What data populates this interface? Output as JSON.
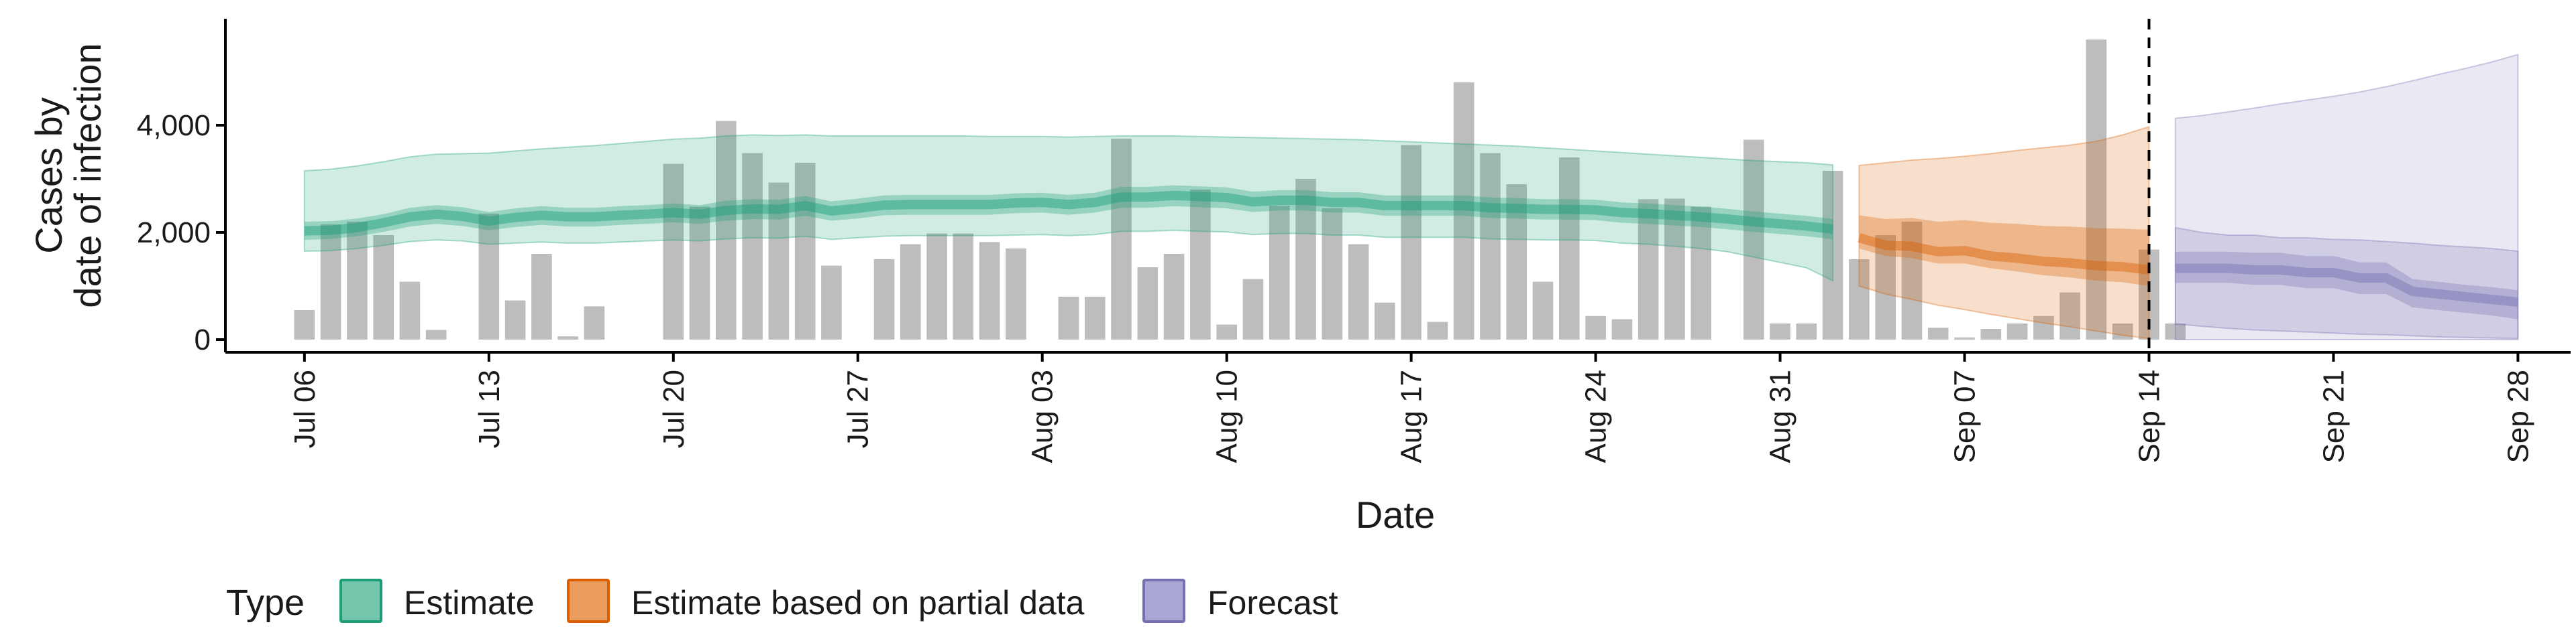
{
  "chart_data": {
    "type": "bar",
    "xlabel": "Date",
    "ylabel": [
      "Cases by",
      "date of infection"
    ],
    "ylim": [
      0,
      6000
    ],
    "y_ticks": [
      0,
      2000,
      4000
    ],
    "y_tick_labels": [
      "0",
      "2,000",
      "4,000"
    ],
    "x_range": [
      "2020-07-03",
      "2020-09-30"
    ],
    "x_ticks": [
      "2020-07-06",
      "2020-07-13",
      "2020-07-20",
      "2020-07-27",
      "2020-08-03",
      "2020-08-10",
      "2020-08-17",
      "2020-08-24",
      "2020-08-31",
      "2020-09-07",
      "2020-09-14",
      "2020-09-21",
      "2020-09-28"
    ],
    "x_tick_labels": [
      "Jul 06",
      "Jul 13",
      "Jul 20",
      "Jul 27",
      "Aug 03",
      "Aug 10",
      "Aug 17",
      "Aug 24",
      "Aug 31",
      "Sep 07",
      "Sep 14",
      "Sep 21",
      "Sep 28"
    ],
    "grid": false,
    "forecast_date": "2020-09-14",
    "colors": {
      "bars": "#bdbdbd",
      "estimate": "#1b9e77",
      "partial": "#d95f02",
      "forecast": "#7570b3",
      "axis": "#000000"
    },
    "bars": {
      "start": "2020-07-06",
      "values": [
        550,
        2150,
        2200,
        1950,
        1080,
        180,
        0,
        2350,
        730,
        1600,
        60,
        620,
        0,
        0,
        3280,
        2480,
        4080,
        3480,
        2930,
        3300,
        1380,
        0,
        1500,
        1780,
        1980,
        1980,
        1820,
        1700,
        0,
        800,
        800,
        3750,
        1350,
        1600,
        2800,
        280,
        1130,
        2500,
        3000,
        2450,
        1780,
        690,
        3630,
        330,
        4800,
        3480,
        2900,
        1080,
        3400,
        440,
        380,
        2620,
        2630,
        2480,
        0,
        3730,
        300,
        300,
        3150,
        1500,
        1950,
        2200,
        220,
        40,
        200,
        300,
        440,
        880,
        5600,
        300,
        1680,
        300
      ]
    },
    "series": [
      {
        "name": "Estimate",
        "start": "2020-07-06",
        "median": [
          2030,
          2040,
          2090,
          2180,
          2290,
          2340,
          2300,
          2210,
          2280,
          2320,
          2290,
          2290,
          2320,
          2340,
          2370,
          2340,
          2410,
          2440,
          2430,
          2500,
          2400,
          2450,
          2510,
          2520,
          2520,
          2520,
          2520,
          2550,
          2560,
          2520,
          2560,
          2660,
          2660,
          2690,
          2670,
          2650,
          2570,
          2600,
          2600,
          2560,
          2560,
          2500,
          2500,
          2500,
          2500,
          2460,
          2450,
          2430,
          2430,
          2420,
          2370,
          2350,
          2320,
          2290,
          2250,
          2200,
          2160,
          2120,
          2060
        ],
        "band50": [
          [
            1860,
            2200
          ],
          [
            1880,
            2210
          ],
          [
            1930,
            2260
          ],
          [
            2010,
            2340
          ],
          [
            2110,
            2460
          ],
          [
            2160,
            2510
          ],
          [
            2120,
            2470
          ],
          [
            2040,
            2380
          ],
          [
            2100,
            2450
          ],
          [
            2140,
            2490
          ],
          [
            2110,
            2460
          ],
          [
            2110,
            2460
          ],
          [
            2140,
            2490
          ],
          [
            2160,
            2510
          ],
          [
            2190,
            2540
          ],
          [
            2160,
            2510
          ],
          [
            2220,
            2590
          ],
          [
            2250,
            2620
          ],
          [
            2240,
            2610
          ],
          [
            2310,
            2680
          ],
          [
            2220,
            2580
          ],
          [
            2260,
            2630
          ],
          [
            2320,
            2690
          ],
          [
            2330,
            2700
          ],
          [
            2330,
            2700
          ],
          [
            2330,
            2700
          ],
          [
            2330,
            2700
          ],
          [
            2360,
            2730
          ],
          [
            2370,
            2740
          ],
          [
            2330,
            2700
          ],
          [
            2370,
            2740
          ],
          [
            2460,
            2850
          ],
          [
            2460,
            2850
          ],
          [
            2490,
            2880
          ],
          [
            2470,
            2860
          ],
          [
            2450,
            2840
          ],
          [
            2380,
            2760
          ],
          [
            2410,
            2790
          ],
          [
            2410,
            2790
          ],
          [
            2370,
            2750
          ],
          [
            2370,
            2750
          ],
          [
            2310,
            2690
          ],
          [
            2310,
            2690
          ],
          [
            2310,
            2690
          ],
          [
            2310,
            2690
          ],
          [
            2270,
            2650
          ],
          [
            2260,
            2640
          ],
          [
            2240,
            2620
          ],
          [
            2240,
            2620
          ],
          [
            2230,
            2610
          ],
          [
            2180,
            2560
          ],
          [
            2160,
            2540
          ],
          [
            2130,
            2510
          ],
          [
            2100,
            2480
          ],
          [
            2060,
            2440
          ],
          [
            2010,
            2390
          ],
          [
            1970,
            2350
          ],
          [
            1930,
            2310
          ],
          [
            1870,
            2250
          ]
        ],
        "band90": [
          [
            1650,
            3150
          ],
          [
            1660,
            3180
          ],
          [
            1700,
            3240
          ],
          [
            1760,
            3320
          ],
          [
            1830,
            3410
          ],
          [
            1860,
            3460
          ],
          [
            1840,
            3470
          ],
          [
            1780,
            3480
          ],
          [
            1800,
            3520
          ],
          [
            1820,
            3560
          ],
          [
            1800,
            3590
          ],
          [
            1800,
            3620
          ],
          [
            1820,
            3660
          ],
          [
            1840,
            3700
          ],
          [
            1860,
            3740
          ],
          [
            1840,
            3760
          ],
          [
            1880,
            3800
          ],
          [
            1900,
            3820
          ],
          [
            1890,
            3810
          ],
          [
            1930,
            3820
          ],
          [
            1870,
            3800
          ],
          [
            1900,
            3800
          ],
          [
            1930,
            3800
          ],
          [
            1940,
            3800
          ],
          [
            1940,
            3800
          ],
          [
            1940,
            3800
          ],
          [
            1940,
            3790
          ],
          [
            1950,
            3790
          ],
          [
            1960,
            3790
          ],
          [
            1940,
            3780
          ],
          [
            1960,
            3790
          ],
          [
            2020,
            3800
          ],
          [
            2020,
            3800
          ],
          [
            2040,
            3800
          ],
          [
            2020,
            3790
          ],
          [
            2010,
            3780
          ],
          [
            1960,
            3770
          ],
          [
            1980,
            3760
          ],
          [
            1980,
            3750
          ],
          [
            1950,
            3740
          ],
          [
            1950,
            3730
          ],
          [
            1910,
            3710
          ],
          [
            1910,
            3690
          ],
          [
            1910,
            3670
          ],
          [
            1910,
            3650
          ],
          [
            1880,
            3630
          ],
          [
            1870,
            3610
          ],
          [
            1860,
            3580
          ],
          [
            1860,
            3550
          ],
          [
            1850,
            3520
          ],
          [
            1800,
            3490
          ],
          [
            1780,
            3460
          ],
          [
            1740,
            3430
          ],
          [
            1700,
            3400
          ],
          [
            1640,
            3370
          ],
          [
            1540,
            3340
          ],
          [
            1440,
            3320
          ],
          [
            1340,
            3300
          ],
          [
            1100,
            3260
          ]
        ]
      },
      {
        "name": "Estimate based on partial data",
        "start": "2020-09-03",
        "median": [
          1900,
          1760,
          1740,
          1640,
          1660,
          1560,
          1520,
          1460,
          1430,
          1380,
          1360,
          1300
        ],
        "band50": [
          [
            1700,
            2320
          ],
          [
            1560,
            2250
          ],
          [
            1520,
            2270
          ],
          [
            1420,
            2200
          ],
          [
            1420,
            2230
          ],
          [
            1330,
            2180
          ],
          [
            1270,
            2160
          ],
          [
            1200,
            2120
          ],
          [
            1160,
            2110
          ],
          [
            1100,
            2080
          ],
          [
            1070,
            2070
          ],
          [
            1000,
            2050
          ]
        ],
        "band90": [
          [
            1000,
            3250
          ],
          [
            850,
            3300
          ],
          [
            750,
            3350
          ],
          [
            640,
            3380
          ],
          [
            560,
            3420
          ],
          [
            470,
            3470
          ],
          [
            390,
            3530
          ],
          [
            310,
            3580
          ],
          [
            240,
            3630
          ],
          [
            160,
            3700
          ],
          [
            80,
            3820
          ],
          [
            20,
            3970
          ]
        ]
      },
      {
        "name": "Forecast",
        "start": "2020-09-15",
        "median": [
          1330,
          1330,
          1330,
          1300,
          1300,
          1250,
          1250,
          1150,
          1150,
          900,
          850,
          800,
          750,
          700
        ],
        "band50": [
          [
            1060,
            1640
          ],
          [
            1060,
            1640
          ],
          [
            1060,
            1640
          ],
          [
            1020,
            1620
          ],
          [
            1020,
            1620
          ],
          [
            960,
            1560
          ],
          [
            960,
            1560
          ],
          [
            850,
            1440
          ],
          [
            850,
            1440
          ],
          [
            600,
            1130
          ],
          [
            550,
            1080
          ],
          [
            500,
            1020
          ],
          [
            450,
            980
          ],
          [
            380,
            920
          ]
        ],
        "band90": [
          [
            290,
            2090
          ],
          [
            250,
            2000
          ],
          [
            210,
            1950
          ],
          [
            180,
            1950
          ],
          [
            160,
            1900
          ],
          [
            140,
            1900
          ],
          [
            120,
            1870
          ],
          [
            100,
            1860
          ],
          [
            90,
            1830
          ],
          [
            70,
            1800
          ],
          [
            50,
            1760
          ],
          [
            40,
            1730
          ],
          [
            30,
            1700
          ],
          [
            20,
            1650
          ]
        ],
        "band_outer": [
          [
            0,
            4130
          ],
          [
            0,
            4180
          ],
          [
            0,
            4250
          ],
          [
            0,
            4320
          ],
          [
            0,
            4400
          ],
          [
            0,
            4470
          ],
          [
            0,
            4540
          ],
          [
            0,
            4620
          ],
          [
            0,
            4720
          ],
          [
            0,
            4830
          ],
          [
            0,
            4950
          ],
          [
            0,
            5060
          ],
          [
            0,
            5180
          ],
          [
            0,
            5320
          ]
        ]
      }
    ],
    "legend": {
      "title": "Type",
      "position": "bottom-left",
      "items": [
        "Estimate",
        "Estimate based on partial data",
        "Forecast"
      ]
    }
  }
}
